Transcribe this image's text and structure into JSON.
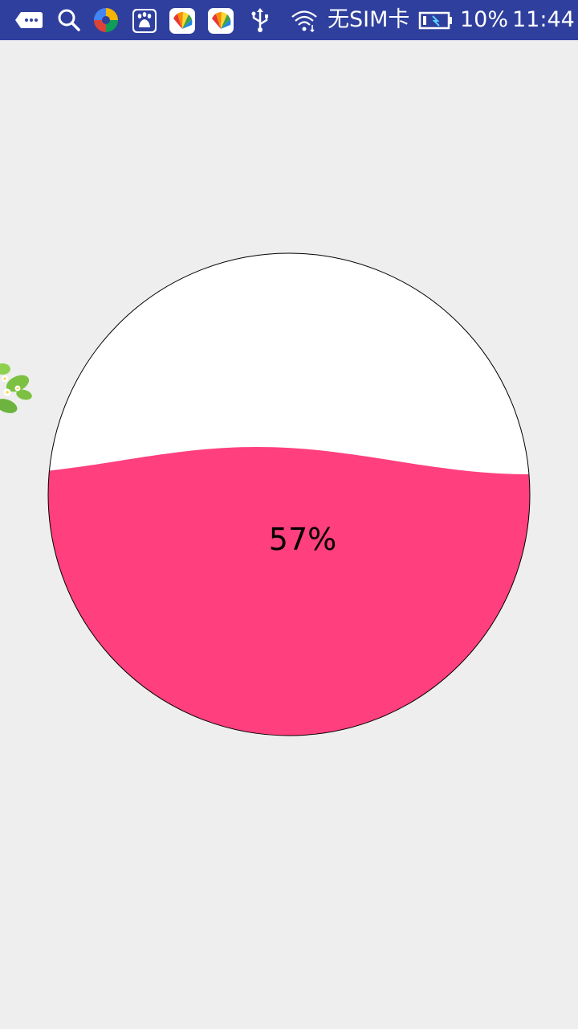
{
  "status_bar": {
    "carrier": "无SIM卡",
    "battery_percent": "10%",
    "time": "11:44",
    "background_color": "#2f3f9e",
    "icons": [
      "message-more-icon",
      "search-icon",
      "app-pinwheel-icon",
      "baidu-paw-icon",
      "app-fan-icon",
      "app-fan-icon",
      "usb-icon",
      "wifi-icon",
      "battery-icon"
    ]
  },
  "progress": {
    "label": "57%",
    "value": 0.57,
    "fill_color": "#ff3f7e",
    "empty_color": "#ffffff",
    "outline_color": "#000000"
  },
  "decoration": {
    "icon": "flower-leaves-icon"
  }
}
